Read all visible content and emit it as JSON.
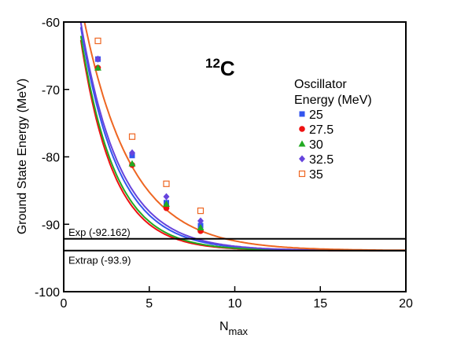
{
  "chart_data": {
    "type": "line",
    "annotation": {
      "superscript": "12",
      "symbol": "C"
    },
    "xlabel": {
      "main": "N",
      "subscript": "max"
    },
    "ylabel": "Ground State Energy (MeV)",
    "xlim": [
      0,
      20
    ],
    "ylim": [
      -100,
      -60
    ],
    "xticks": [
      0,
      5,
      10,
      15,
      20
    ],
    "yticks": [
      -60,
      -70,
      -80,
      -90,
      -100
    ],
    "grid": false,
    "legend": {
      "title_lines": [
        "Oscillator",
        "Energy (MeV)"
      ],
      "placement": "top-right"
    },
    "reference_lines": [
      {
        "label": "Exp (-92.162)",
        "y": -92.162
      },
      {
        "label": "Extrap (-93.9)",
        "y": -93.9
      }
    ],
    "series": [
      {
        "name": "25",
        "color": "#3355ee",
        "marker": "square",
        "x": [
          2,
          4,
          6,
          8
        ],
        "y": [
          -65.5,
          -79.8,
          -86.8,
          -90.2
        ],
        "curve": {
          "asymptote": -93.9,
          "amplitude": 52.5,
          "decay": 0.46
        }
      },
      {
        "name": "27.5",
        "color": "#ee1111",
        "marker": "circle",
        "x": [
          2,
          4,
          6,
          8
        ],
        "y": [
          -66.8,
          -81.2,
          -87.6,
          -91.0
        ],
        "curve": {
          "asymptote": -93.9,
          "amplitude": 52.5,
          "decay": 0.52
        }
      },
      {
        "name": "30",
        "color": "#22aa22",
        "marker": "triangle",
        "x": [
          2,
          4,
          6,
          8
        ],
        "y": [
          -66.8,
          -81.0,
          -87.0,
          -90.5
        ],
        "curve": {
          "asymptote": -93.9,
          "amplitude": 52.5,
          "decay": 0.5
        }
      },
      {
        "name": "32.5",
        "color": "#6644dd",
        "marker": "diamond",
        "x": [
          2,
          4,
          6,
          8
        ],
        "y": [
          -65.5,
          -79.4,
          -85.9,
          -89.5
        ],
        "curve": {
          "asymptote": -93.9,
          "amplitude": 52.5,
          "decay": 0.44
        }
      },
      {
        "name": "35",
        "color": "#ee6622",
        "marker": "open-square",
        "x": [
          2,
          4,
          6,
          8
        ],
        "y": [
          -62.8,
          -77.0,
          -84.0,
          -88.0
        ],
        "curve": {
          "asymptote": -93.9,
          "amplitude": 52.5,
          "decay": 0.36
        }
      }
    ]
  }
}
